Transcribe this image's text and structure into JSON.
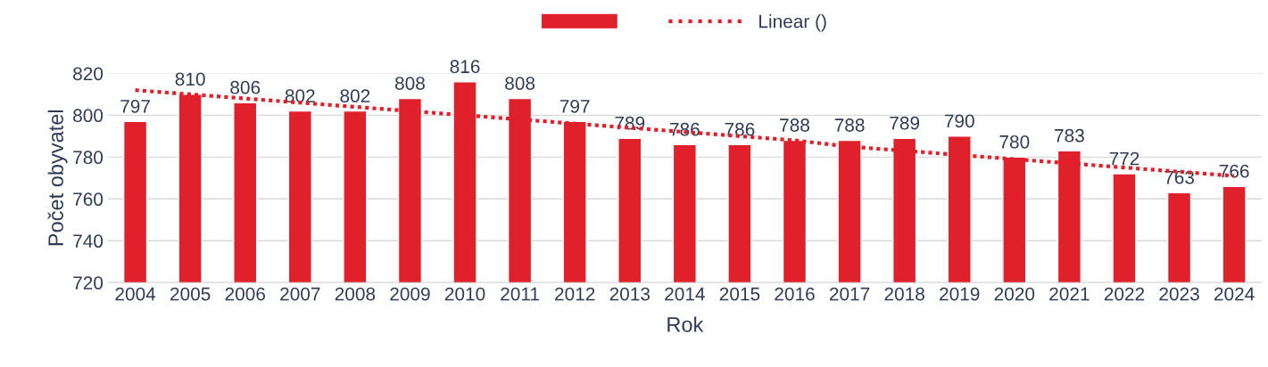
{
  "chart_data": {
    "type": "bar",
    "xlabel": "Rok",
    "ylabel": "Počet obyvatel",
    "categories": [
      "2004",
      "2005",
      "2006",
      "2007",
      "2008",
      "2009",
      "2010",
      "2011",
      "2012",
      "2013",
      "2014",
      "2015",
      "2016",
      "2017",
      "2018",
      "2019",
      "2020",
      "2021",
      "2022",
      "2023",
      "2024"
    ],
    "series": [
      {
        "color": "#e0202a",
        "values": [
          797,
          810,
          806,
          802,
          802,
          808,
          816,
          808,
          797,
          789,
          786,
          786,
          788,
          788,
          789,
          790,
          780,
          783,
          772,
          763,
          766
        ],
        "value_labels": [
          "797",
          "810",
          "806",
          "802",
          "802",
          "808",
          "816",
          "808",
          "797",
          "789",
          "786",
          "786",
          "788",
          "788",
          "789",
          "790",
          "780",
          "783",
          "772",
          "763",
          "766"
        ]
      },
      {
        "name": "Linear ()",
        "type": "line",
        "line_style": "dotted",
        "color": "#e0202a",
        "values": [
          812,
          810,
          808,
          806,
          804,
          802,
          800,
          798,
          796,
          794,
          792,
          790,
          788,
          785,
          783,
          781,
          779,
          777,
          775,
          773,
          771
        ]
      }
    ],
    "ylim": [
      720,
      820
    ],
    "yticks": [
      720,
      740,
      760,
      780,
      800,
      820
    ],
    "grid": "y",
    "legend": "top"
  }
}
